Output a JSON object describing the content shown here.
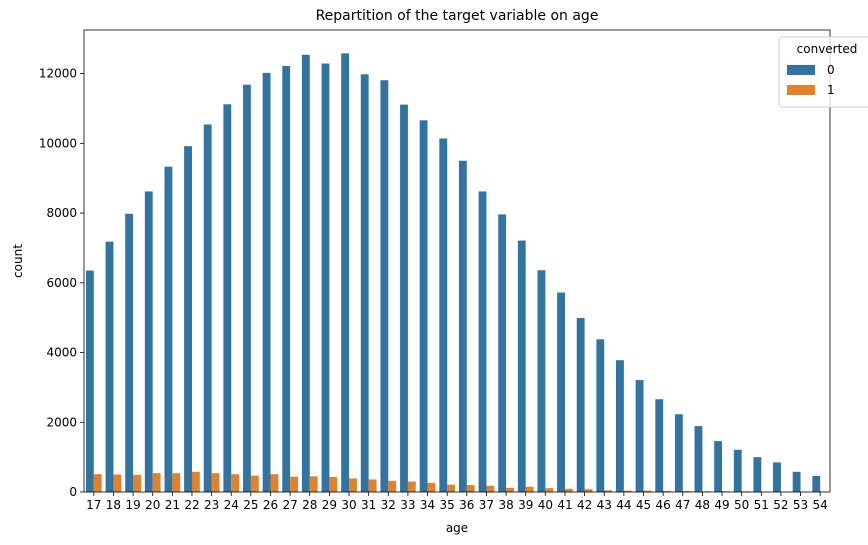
{
  "chart_data": {
    "type": "bar",
    "title": "Repartition of the target variable on age",
    "xlabel": "age",
    "ylabel": "count",
    "ylim": [
      0,
      13250
    ],
    "yticks": [
      0,
      2000,
      4000,
      6000,
      8000,
      10000,
      12000
    ],
    "categories": [
      "17",
      "18",
      "19",
      "20",
      "21",
      "22",
      "23",
      "24",
      "25",
      "26",
      "27",
      "28",
      "29",
      "30",
      "31",
      "32",
      "33",
      "34",
      "35",
      "36",
      "37",
      "38",
      "39",
      "40",
      "41",
      "42",
      "43",
      "44",
      "45",
      "46",
      "47",
      "48",
      "49",
      "50",
      "51",
      "52",
      "53",
      "54"
    ],
    "legend": {
      "title": "converted",
      "position": "top-right"
    },
    "series": [
      {
        "name": "0",
        "color": "#3274a1",
        "values": [
          6350,
          7180,
          7980,
          8620,
          9330,
          9920,
          10540,
          11120,
          11680,
          12020,
          12220,
          12540,
          12290,
          12580,
          11980,
          11810,
          11110,
          10660,
          10140,
          9500,
          8620,
          7960,
          7210,
          6360,
          5720,
          4990,
          4380,
          3780,
          3210,
          2660,
          2230,
          1890,
          1460,
          1210,
          1000,
          850,
          580,
          460
        ]
      },
      {
        "name": "1",
        "color": "#e1812c",
        "values": [
          510,
          500,
          490,
          540,
          540,
          580,
          540,
          510,
          470,
          510,
          440,
          450,
          430,
          390,
          360,
          320,
          300,
          260,
          210,
          200,
          180,
          120,
          150,
          110,
          90,
          80,
          50,
          40,
          40,
          30,
          30,
          20,
          20,
          20,
          10,
          10,
          10,
          10
        ]
      }
    ]
  }
}
